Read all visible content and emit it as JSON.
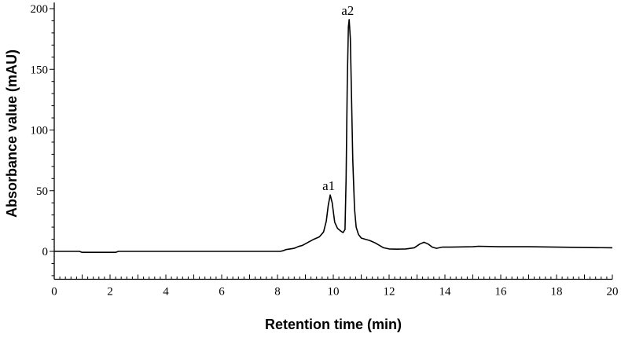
{
  "chart_data": {
    "type": "line",
    "title": "",
    "xlabel": "Retention time (min)",
    "ylabel": "Absorbance value (mAU)",
    "xlim": [
      0,
      20
    ],
    "ylim": [
      -23,
      205
    ],
    "x_ticks": [
      0,
      2,
      4,
      6,
      8,
      10,
      12,
      14,
      16,
      18,
      20
    ],
    "x_tick_labels": [
      "0",
      "2",
      "4",
      "6",
      "8",
      "10",
      "12",
      "14",
      "16",
      "18",
      "20"
    ],
    "y_ticks": [
      0,
      50,
      100,
      150,
      200
    ],
    "y_tick_labels": [
      "0",
      "50",
      "100",
      "150",
      "200"
    ],
    "grid": false,
    "series": [
      {
        "name": "chromatogram",
        "color": "#000000",
        "x": [
          0,
          0.9,
          1.0,
          2.2,
          2.3,
          4,
          6,
          8.1,
          8.2,
          8.3,
          8.45,
          8.6,
          8.75,
          8.9,
          9.1,
          9.3,
          9.5,
          9.65,
          9.75,
          9.82,
          9.89,
          9.96,
          10.05,
          10.15,
          10.25,
          10.35,
          10.42,
          10.46,
          10.5,
          10.54,
          10.57,
          10.61,
          10.65,
          10.7,
          10.76,
          10.82,
          10.9,
          11.0,
          11.15,
          11.3,
          11.5,
          11.65,
          11.8,
          12.0,
          12.3,
          12.6,
          12.9,
          13.1,
          13.25,
          13.4,
          13.55,
          13.7,
          13.9,
          14.2,
          15,
          15.2,
          16,
          17,
          18,
          19,
          20
        ],
        "y": [
          0,
          0,
          -0.8,
          -0.8,
          0,
          0,
          0,
          0,
          0.5,
          1.5,
          2,
          2.5,
          4,
          5,
          7.5,
          10,
          12,
          16,
          25,
          38,
          46.5,
          40,
          24,
          19,
          17,
          15.5,
          18,
          60,
          140,
          185,
          191,
          175,
          130,
          75,
          35,
          20,
          14,
          11,
          10,
          9,
          7,
          5,
          3,
          2,
          1.8,
          2,
          3,
          6,
          7.5,
          6,
          3.5,
          2.5,
          3.5,
          3.5,
          3.8,
          4.2,
          3.8,
          3.8,
          3.5,
          3.2,
          3
        ]
      }
    ],
    "annotations": [
      {
        "text": "a1",
        "x": 9.89,
        "y": 46.5
      },
      {
        "text": "a2",
        "x": 10.57,
        "y": 191
      }
    ]
  }
}
